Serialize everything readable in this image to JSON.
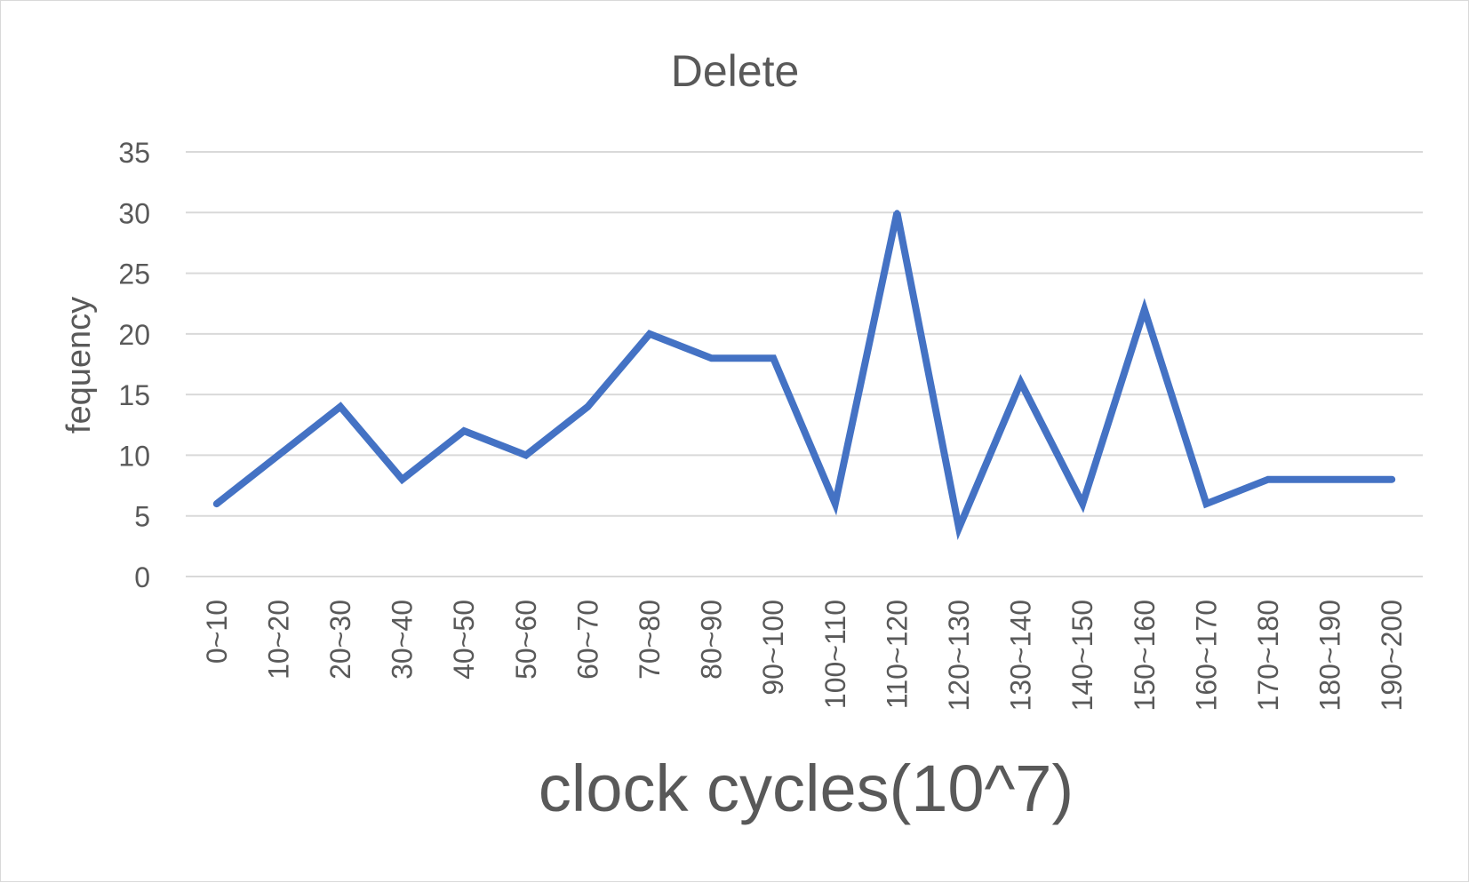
{
  "chart_data": {
    "type": "line",
    "title": "Delete",
    "xlabel": "clock cycles(10^7)",
    "ylabel": "fequency",
    "categories": [
      "0~10",
      "10~20",
      "20~30",
      "30~40",
      "40~50",
      "50~60",
      "60~70",
      "70~80",
      "80~90",
      "90~100",
      "100~110",
      "110~120",
      "120~130",
      "130~140",
      "140~150",
      "150~160",
      "160~170",
      "170~180",
      "180~190",
      "190~200"
    ],
    "series": [
      {
        "values": [
          6,
          10,
          14,
          8,
          12,
          10,
          14,
          20,
          18,
          18,
          6,
          30,
          4,
          16,
          6,
          22,
          6,
          8,
          8,
          8
        ]
      }
    ],
    "ylim": [
      0,
      35
    ],
    "yticks": [
      0,
      5,
      10,
      15,
      20,
      25,
      30,
      35
    ],
    "grid": true,
    "colors": {
      "line": "#4472C4",
      "grid": "#d9d9d9",
      "text": "#595959"
    }
  }
}
